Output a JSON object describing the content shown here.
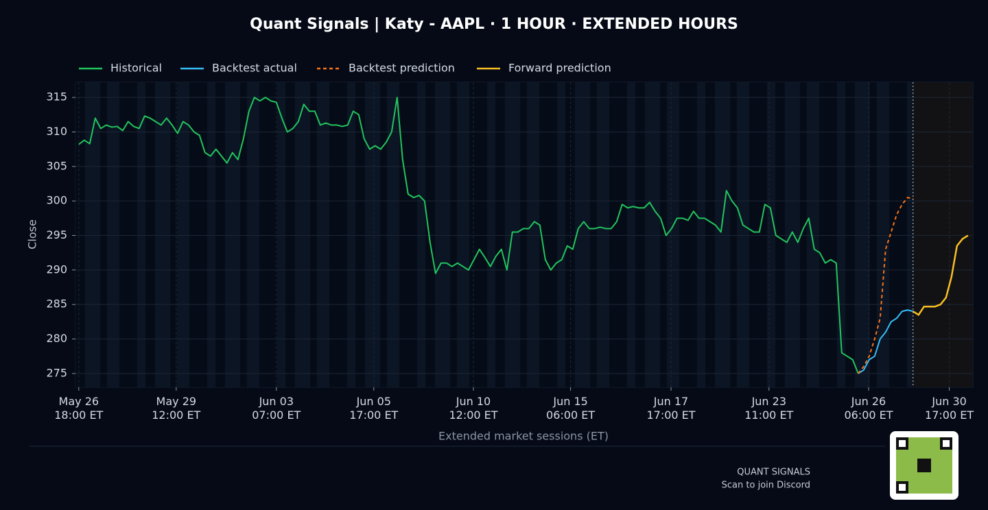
{
  "chart_data": {
    "type": "line",
    "title": "Quant Signals | Katy - AAPL  ·  1 HOUR  ·  EXTENDED HOURS",
    "y_label": "Close",
    "x_label": "Extended market sessions (ET)",
    "legend": "top-left",
    "grid": true,
    "xlim": [
      -0.6,
      162.9
    ],
    "xticks": [
      {
        "value": 0,
        "label": "May 26\n18:00 ET"
      },
      {
        "value": 17.75,
        "label": "May 29\n12:00 ET"
      },
      {
        "value": 36,
        "label": "Jun 03\n07:00 ET"
      },
      {
        "value": 53.75,
        "label": "Jun 05\n17:00 ET"
      },
      {
        "value": 71.9,
        "label": "Jun 10\n12:00 ET"
      },
      {
        "value": 89.6,
        "label": "Jun 15\n06:00 ET"
      },
      {
        "value": 107.9,
        "label": "Jun 17\n17:00 ET"
      },
      {
        "value": 125.75,
        "label": "Jun 23\n11:00 ET"
      },
      {
        "value": 143.9,
        "label": "Jun 26\n06:00 ET"
      },
      {
        "value": 158.6,
        "label": "Jun 30\n17:00 ET"
      }
    ],
    "ylim": [
      273,
      317.2
    ],
    "yticks": [
      275,
      280,
      285,
      290,
      295,
      300,
      305,
      310,
      315
    ],
    "series": [
      {
        "name": "Historical",
        "color": "#22c55e",
        "dash": false,
        "values": [
          308.2,
          308.8,
          308.3,
          312,
          310.5,
          311,
          310.7,
          310.8,
          310.2,
          311.5,
          310.8,
          310.5,
          312.3,
          312,
          311.5,
          311,
          312,
          311,
          309.8,
          311.5,
          311,
          310,
          309.5,
          307,
          306.5,
          307.5,
          306.5,
          305.5,
          307,
          306,
          309,
          313,
          315,
          314.5,
          315,
          314.5,
          314.3,
          312,
          310,
          310.5,
          311.5,
          314,
          313,
          313,
          311,
          311.3,
          311,
          311,
          310.8,
          311,
          313,
          312.5,
          309,
          307.5,
          308,
          307.5,
          308.5,
          310,
          315,
          306,
          301,
          300.5,
          300.8,
          300,
          294,
          289.5,
          291,
          291,
          290.5,
          291,
          290.5,
          290,
          291.5,
          293,
          291.8,
          290.5,
          292,
          293,
          290,
          295.5,
          295.5,
          296,
          296,
          297,
          296.5,
          291.5,
          290,
          291,
          291.5,
          293.5,
          293,
          296,
          297,
          296,
          296,
          296.2,
          296,
          296,
          297,
          299.5,
          299,
          299.2,
          299,
          299,
          299.8,
          298.5,
          297.5,
          295,
          296,
          297.5,
          297.5,
          297.2,
          298.5,
          297.5,
          297.5,
          297,
          296.5,
          295.5,
          301.5,
          300,
          299,
          296.5,
          296,
          295.5,
          295.5,
          299.5,
          299,
          295,
          294.5,
          294,
          295.5,
          294,
          296,
          297.5,
          293,
          292.5,
          291,
          291.5,
          291,
          278,
          277.5,
          277,
          275,
          null,
          null,
          null,
          null,
          null,
          null,
          null,
          null,
          null,
          null,
          null,
          null,
          null,
          null,
          null,
          null,
          null,
          null,
          null,
          null
        ]
      },
      {
        "name": "Backtest actual",
        "color": "#38bdf8",
        "dash": false,
        "values": [
          null,
          null,
          null,
          null,
          null,
          null,
          null,
          null,
          null,
          null,
          null,
          null,
          null,
          null,
          null,
          null,
          null,
          null,
          null,
          null,
          null,
          null,
          null,
          null,
          null,
          null,
          null,
          null,
          null,
          null,
          null,
          null,
          null,
          null,
          null,
          null,
          null,
          null,
          null,
          null,
          null,
          null,
          null,
          null,
          null,
          null,
          null,
          null,
          null,
          null,
          null,
          null,
          null,
          null,
          null,
          null,
          null,
          null,
          null,
          null,
          null,
          null,
          null,
          null,
          null,
          null,
          null,
          null,
          null,
          null,
          null,
          null,
          null,
          null,
          null,
          null,
          null,
          null,
          null,
          null,
          null,
          null,
          null,
          null,
          null,
          null,
          null,
          null,
          null,
          null,
          null,
          null,
          null,
          null,
          null,
          null,
          null,
          null,
          null,
          null,
          null,
          null,
          null,
          null,
          null,
          null,
          null,
          null,
          null,
          null,
          null,
          null,
          null,
          null,
          null,
          null,
          null,
          null,
          null,
          null,
          null,
          null,
          null,
          null,
          null,
          null,
          null,
          null,
          null,
          null,
          null,
          null,
          null,
          null,
          null,
          null,
          null,
          null,
          null,
          null,
          null,
          null,
          275,
          275.5,
          277,
          277.5,
          280,
          281,
          282.5,
          283,
          284,
          284.2,
          284,
          null,
          null,
          null,
          null,
          null,
          null,
          null,
          null,
          null,
          null
        ]
      },
      {
        "name": "Backtest prediction",
        "color": "#f97316",
        "dash": true,
        "values": [
          null,
          null,
          null,
          null,
          null,
          null,
          null,
          null,
          null,
          null,
          null,
          null,
          null,
          null,
          null,
          null,
          null,
          null,
          null,
          null,
          null,
          null,
          null,
          null,
          null,
          null,
          null,
          null,
          null,
          null,
          null,
          null,
          null,
          null,
          null,
          null,
          null,
          null,
          null,
          null,
          null,
          null,
          null,
          null,
          null,
          null,
          null,
          null,
          null,
          null,
          null,
          null,
          null,
          null,
          null,
          null,
          null,
          null,
          null,
          null,
          null,
          null,
          null,
          null,
          null,
          null,
          null,
          null,
          null,
          null,
          null,
          null,
          null,
          null,
          null,
          null,
          null,
          null,
          null,
          null,
          null,
          null,
          null,
          null,
          null,
          null,
          null,
          null,
          null,
          null,
          null,
          null,
          null,
          null,
          null,
          null,
          null,
          null,
          null,
          null,
          null,
          null,
          null,
          null,
          null,
          null,
          null,
          null,
          null,
          null,
          null,
          null,
          null,
          null,
          null,
          null,
          null,
          null,
          null,
          null,
          null,
          null,
          null,
          null,
          null,
          null,
          null,
          null,
          null,
          null,
          null,
          null,
          null,
          null,
          null,
          null,
          null,
          null,
          null,
          null,
          null,
          null,
          275,
          276,
          277.5,
          280,
          283,
          293,
          295.5,
          298,
          299.5,
          300.5,
          300.3,
          null,
          null,
          null,
          null,
          null,
          null,
          null,
          null,
          null,
          null
        ]
      },
      {
        "name": "Forward prediction",
        "color": "#fbbf24",
        "dash": false,
        "values": [
          null,
          null,
          null,
          null,
          null,
          null,
          null,
          null,
          null,
          null,
          null,
          null,
          null,
          null,
          null,
          null,
          null,
          null,
          null,
          null,
          null,
          null,
          null,
          null,
          null,
          null,
          null,
          null,
          null,
          null,
          null,
          null,
          null,
          null,
          null,
          null,
          null,
          null,
          null,
          null,
          null,
          null,
          null,
          null,
          null,
          null,
          null,
          null,
          null,
          null,
          null,
          null,
          null,
          null,
          null,
          null,
          null,
          null,
          null,
          null,
          null,
          null,
          null,
          null,
          null,
          null,
          null,
          null,
          null,
          null,
          null,
          null,
          null,
          null,
          null,
          null,
          null,
          null,
          null,
          null,
          null,
          null,
          null,
          null,
          null,
          null,
          null,
          null,
          null,
          null,
          null,
          null,
          null,
          null,
          null,
          null,
          null,
          null,
          null,
          null,
          null,
          null,
          null,
          null,
          null,
          null,
          null,
          null,
          null,
          null,
          null,
          null,
          null,
          null,
          null,
          null,
          null,
          null,
          null,
          null,
          null,
          null,
          null,
          null,
          null,
          null,
          null,
          null,
          null,
          null,
          null,
          null,
          null,
          null,
          null,
          null,
          null,
          null,
          null,
          null,
          null,
          null,
          null,
          null,
          null,
          null,
          null,
          null,
          null,
          null,
          null,
          null,
          284,
          283.5,
          284.7,
          284.7,
          284.7,
          285,
          286,
          289,
          293.5,
          294.5,
          295
        ]
      }
    ]
  },
  "footer": {
    "brand": "QUANT SIGNALS",
    "cta": "Scan to join Discord"
  }
}
